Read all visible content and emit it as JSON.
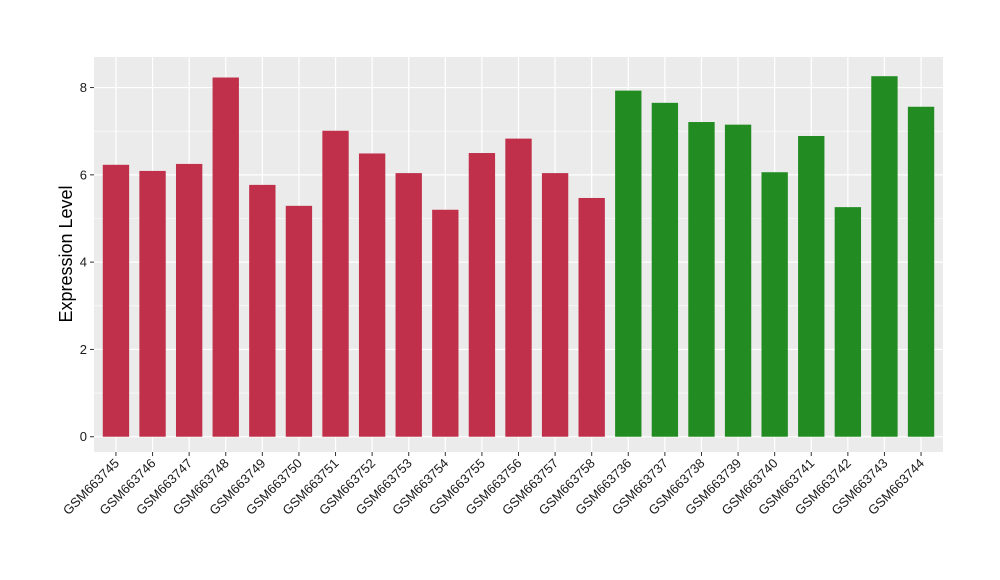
{
  "chart_data": {
    "type": "bar",
    "title": "",
    "xlabel": "",
    "ylabel": "Expression Level",
    "ylim": [
      -0.35,
      8.7
    ],
    "yticks": [
      0,
      2,
      4,
      6,
      8
    ],
    "grid": true,
    "categories": [
      "GSM663745",
      "GSM663746",
      "GSM663747",
      "GSM663748",
      "GSM663749",
      "GSM663750",
      "GSM663751",
      "GSM663752",
      "GSM663753",
      "GSM663754",
      "GSM663755",
      "GSM663756",
      "GSM663757",
      "GSM663758",
      "GSM663736",
      "GSM663737",
      "GSM663738",
      "GSM663739",
      "GSM663740",
      "GSM663741",
      "GSM663742",
      "GSM663743",
      "GSM663744"
    ],
    "values": [
      6.23,
      6.09,
      6.25,
      8.23,
      5.77,
      5.29,
      7.01,
      6.49,
      6.04,
      5.2,
      6.5,
      6.83,
      6.04,
      5.47,
      7.93,
      7.65,
      7.21,
      7.15,
      6.06,
      6.89,
      5.26,
      8.26,
      7.56
    ],
    "bar_colors": [
      "#c0304a",
      "#c0304a",
      "#c0304a",
      "#c0304a",
      "#c0304a",
      "#c0304a",
      "#c0304a",
      "#c0304a",
      "#c0304a",
      "#c0304a",
      "#c0304a",
      "#c0304a",
      "#c0304a",
      "#c0304a",
      "#228b22",
      "#228b22",
      "#228b22",
      "#228b22",
      "#228b22",
      "#228b22",
      "#228b22",
      "#228b22",
      "#228b22"
    ],
    "panel_background": "#ebebeb",
    "grid_color": "#ffffff"
  }
}
